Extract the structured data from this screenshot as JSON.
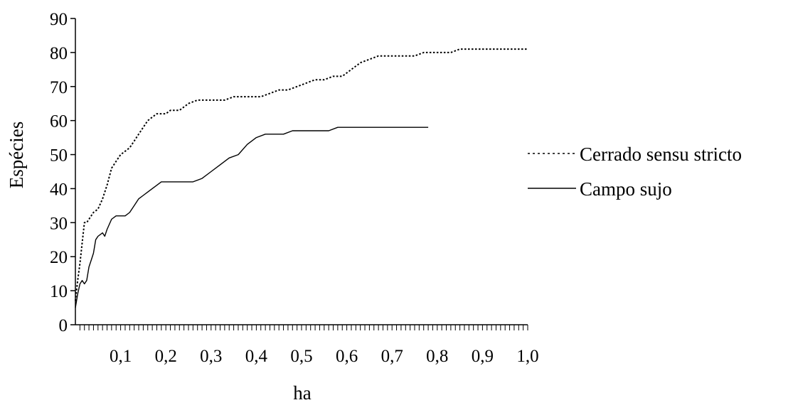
{
  "chart_data": {
    "type": "line",
    "title": "",
    "xlabel": "ha",
    "ylabel": "Espécies",
    "xlim": [
      0,
      1.0
    ],
    "ylim": [
      0,
      90
    ],
    "y_ticks": [
      0,
      10,
      20,
      30,
      40,
      50,
      60,
      70,
      80,
      90
    ],
    "y_tick_labels": [
      "0",
      "10",
      "20",
      "30",
      "40",
      "50",
      "60",
      "70",
      "80",
      "90"
    ],
    "x_ticks": [
      0.1,
      0.2,
      0.3,
      0.4,
      0.5,
      0.6,
      0.7,
      0.8,
      0.9,
      1.0
    ],
    "x_tick_labels": [
      "0,1",
      "0,2",
      "0,3",
      "0,4",
      "0,5",
      "0,6",
      "0,7",
      "0,8",
      "0,9",
      "1,0"
    ],
    "minor_tick_step": 0.01,
    "grid": false,
    "legend_position": "right",
    "series": [
      {
        "name": "Cerrado sensu stricto",
        "style": "dotted",
        "color": "#000000",
        "x": [
          0.0,
          0.005,
          0.01,
          0.015,
          0.02,
          0.025,
          0.03,
          0.04,
          0.05,
          0.06,
          0.07,
          0.08,
          0.09,
          0.1,
          0.11,
          0.12,
          0.13,
          0.14,
          0.15,
          0.16,
          0.17,
          0.18,
          0.19,
          0.2,
          0.21,
          0.22,
          0.23,
          0.25,
          0.27,
          0.29,
          0.31,
          0.33,
          0.35,
          0.37,
          0.39,
          0.41,
          0.43,
          0.45,
          0.47,
          0.49,
          0.51,
          0.53,
          0.55,
          0.57,
          0.59,
          0.61,
          0.63,
          0.65,
          0.67,
          0.69,
          0.71,
          0.73,
          0.75,
          0.77,
          0.79,
          0.81,
          0.83,
          0.85,
          0.87,
          0.89,
          0.91,
          0.93,
          0.95,
          0.97,
          0.99,
          1.0
        ],
        "values": [
          7,
          13,
          18,
          24,
          30,
          30,
          31,
          33,
          34,
          37,
          41,
          46,
          48,
          50,
          51,
          52,
          54,
          56,
          58,
          60,
          61,
          62,
          62,
          62,
          63,
          63,
          63,
          65,
          66,
          66,
          66,
          66,
          67,
          67,
          67,
          67,
          68,
          69,
          69,
          70,
          71,
          72,
          72,
          73,
          73,
          75,
          77,
          78,
          79,
          79,
          79,
          79,
          79,
          80,
          80,
          80,
          80,
          81,
          81,
          81,
          81,
          81,
          81,
          81,
          81,
          81
        ]
      },
      {
        "name": "Campo sujo",
        "style": "solid",
        "color": "#000000",
        "x": [
          0.0,
          0.005,
          0.01,
          0.015,
          0.02,
          0.025,
          0.03,
          0.035,
          0.04,
          0.045,
          0.05,
          0.06,
          0.065,
          0.07,
          0.08,
          0.09,
          0.1,
          0.11,
          0.12,
          0.13,
          0.14,
          0.15,
          0.16,
          0.17,
          0.18,
          0.19,
          0.2,
          0.22,
          0.24,
          0.26,
          0.28,
          0.3,
          0.32,
          0.34,
          0.36,
          0.38,
          0.4,
          0.42,
          0.44,
          0.46,
          0.48,
          0.5,
          0.52,
          0.54,
          0.56,
          0.58,
          0.6,
          0.62,
          0.64,
          0.66,
          0.68,
          0.7,
          0.72,
          0.74,
          0.76,
          0.78
        ],
        "values": [
          5,
          9,
          12,
          13,
          12,
          13,
          17,
          19,
          21,
          25,
          26,
          27,
          26,
          28,
          31,
          32,
          32,
          32,
          33,
          35,
          37,
          38,
          39,
          40,
          41,
          42,
          42,
          42,
          42,
          42,
          43,
          45,
          47,
          49,
          50,
          53,
          55,
          56,
          56,
          56,
          57,
          57,
          57,
          57,
          57,
          58,
          58,
          58,
          58,
          58,
          58,
          58,
          58,
          58,
          58,
          58
        ]
      }
    ]
  }
}
